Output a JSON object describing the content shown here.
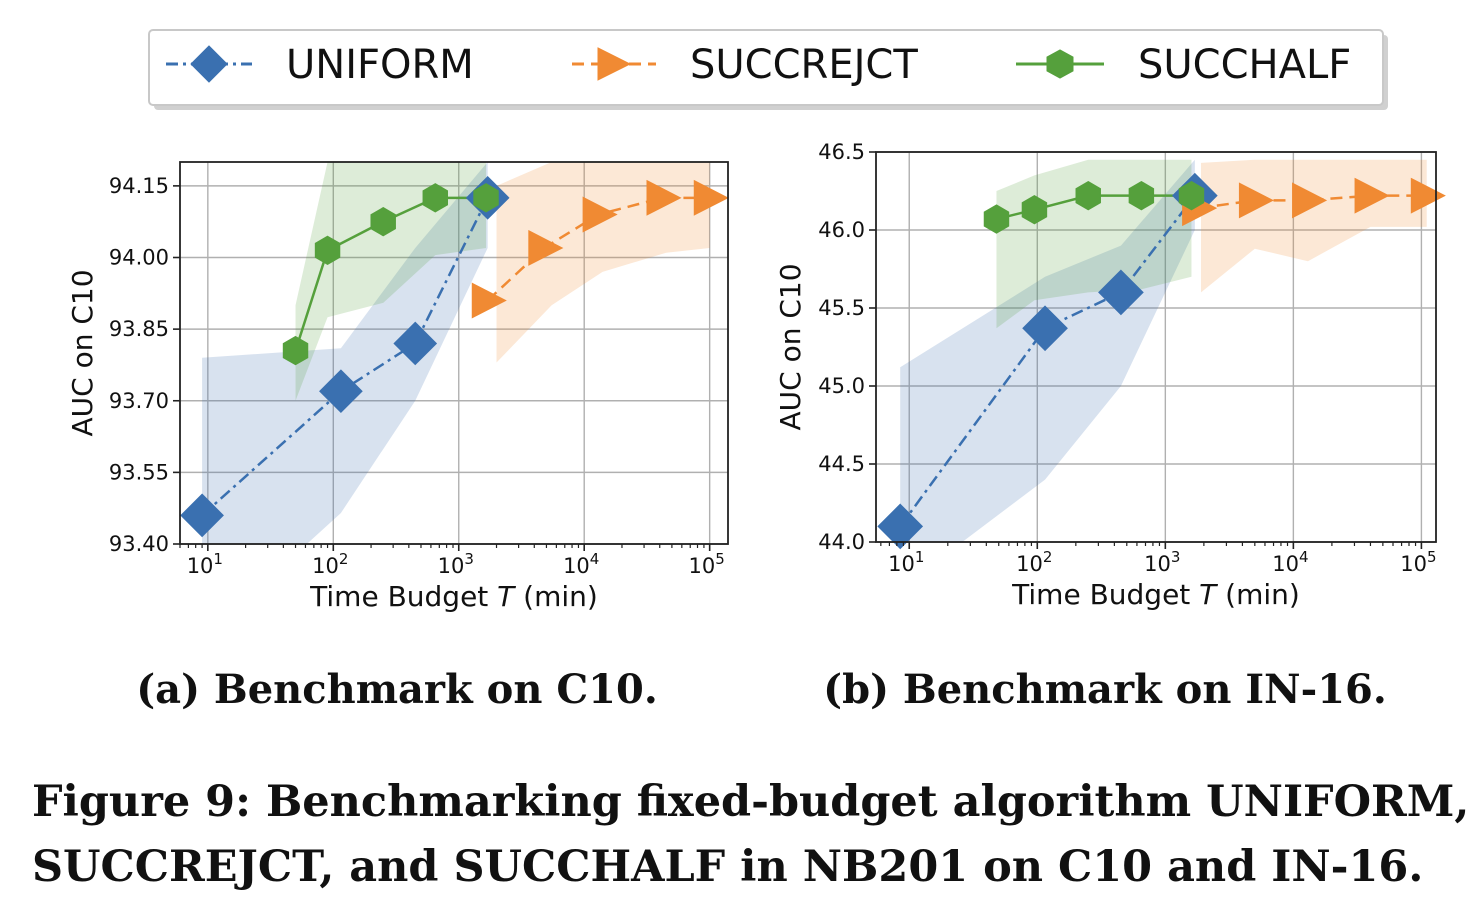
{
  "legend": {
    "entries": [
      {
        "label": "UNIFORM",
        "color": "#3a70b0",
        "marker": "diamond",
        "linestyle": "dashdot"
      },
      {
        "label": "SUCCREJCT",
        "color": "#f08a33",
        "marker": "triangle-right",
        "linestyle": "dashed"
      },
      {
        "label": "SUCCHALF",
        "color": "#55a03c",
        "marker": "hexagon",
        "linestyle": "solid"
      }
    ],
    "placement": "top-center"
  },
  "chart_data": [
    {
      "type": "line",
      "caption": "(a) Benchmark on C10.",
      "xlabel_pre": "Time Budget ",
      "xlabel_var": "T",
      "xlabel_post": " (min)",
      "ylabel": "AUC on C10",
      "xscale": "log",
      "xlim": [
        6,
        140000
      ],
      "ylim": [
        93.4,
        94.2
      ],
      "grid": true,
      "xticks": [
        {
          "value": 10,
          "base": "10",
          "exp": "1"
        },
        {
          "value": 100,
          "base": "10",
          "exp": "2"
        },
        {
          "value": 1000,
          "base": "10",
          "exp": "3"
        },
        {
          "value": 10000,
          "base": "10",
          "exp": "4"
        },
        {
          "value": 100000,
          "base": "10",
          "exp": "5"
        }
      ],
      "yticks": [
        "93.40",
        "93.55",
        "93.70",
        "93.85",
        "94.00",
        "94.15"
      ],
      "series": [
        {
          "name": "UNIFORM",
          "x": [
            9,
            115,
            450,
            1700
          ],
          "y": [
            93.46,
            93.72,
            93.82,
            94.125
          ],
          "band_x": [
            9,
            115,
            450,
            1700
          ],
          "band_low": [
            93.2,
            93.465,
            93.7,
            94.02
          ],
          "band_high": [
            93.79,
            93.81,
            94.02,
            94.2
          ]
        },
        {
          "name": "SUCCREJCT",
          "x": [
            1700,
            4800,
            13000,
            42000,
            100000
          ],
          "y": [
            93.91,
            94.02,
            94.09,
            94.125,
            94.125
          ],
          "band_x": [
            2000,
            5500,
            14000,
            45000,
            100000
          ],
          "band_low": [
            93.78,
            93.9,
            93.97,
            94.01,
            94.02
          ],
          "band_high": [
            94.15,
            94.2,
            94.2,
            94.2,
            94.2
          ]
        },
        {
          "name": "SUCCHALF",
          "x": [
            50,
            90,
            250,
            650,
            1650
          ],
          "y": [
            93.805,
            94.015,
            94.075,
            94.125,
            94.125
          ],
          "band_x": [
            50,
            90,
            250,
            650,
            1650
          ],
          "band_low": [
            93.7,
            93.875,
            93.905,
            94.005,
            94.02
          ],
          "band_high": [
            93.9,
            94.2,
            94.2,
            94.2,
            94.2
          ]
        }
      ]
    },
    {
      "type": "line",
      "caption": "(b) Benchmark on IN-16.",
      "xlabel_pre": "Time Budget ",
      "xlabel_var": "T",
      "xlabel_post": " (min)",
      "ylabel": "AUC on C10",
      "xscale": "log",
      "xlim": [
        5.5,
        130000
      ],
      "ylim": [
        44.0,
        46.5
      ],
      "grid": true,
      "xticks": [
        {
          "value": 10,
          "base": "10",
          "exp": "1"
        },
        {
          "value": 100,
          "base": "10",
          "exp": "2"
        },
        {
          "value": 1000,
          "base": "10",
          "exp": "3"
        },
        {
          "value": 10000,
          "base": "10",
          "exp": "4"
        },
        {
          "value": 100000,
          "base": "10",
          "exp": "5"
        }
      ],
      "yticks": [
        "44.0",
        "44.5",
        "45.0",
        "45.5",
        "46.0",
        "46.5"
      ],
      "series": [
        {
          "name": "UNIFORM",
          "x": [
            8.5,
            115,
            450,
            1700
          ],
          "y": [
            44.1,
            45.37,
            45.6,
            46.22
          ],
          "band_x": [
            8.5,
            115,
            450,
            1700
          ],
          "band_low": [
            43.7,
            44.4,
            45.0,
            46.0
          ],
          "band_high": [
            45.12,
            45.7,
            45.9,
            46.45
          ]
        },
        {
          "name": "SUCCREJCT",
          "x": [
            1800,
            5000,
            13000,
            40000,
            110000
          ],
          "y": [
            46.14,
            46.19,
            46.19,
            46.22,
            46.22
          ],
          "band_x": [
            1900,
            5000,
            13000,
            40000,
            110000
          ],
          "band_low": [
            45.6,
            45.88,
            45.8,
            46.02,
            46.02
          ],
          "band_high": [
            46.43,
            46.45,
            46.45,
            46.45,
            46.45
          ]
        },
        {
          "name": "SUCCHALF",
          "x": [
            48,
            95,
            250,
            650,
            1600
          ],
          "y": [
            46.07,
            46.13,
            46.22,
            46.22,
            46.22
          ],
          "band_x": [
            48,
            95,
            250,
            650,
            1600
          ],
          "band_low": [
            45.37,
            45.55,
            45.6,
            45.62,
            45.7
          ],
          "band_high": [
            46.25,
            46.35,
            46.45,
            46.45,
            46.45
          ]
        }
      ]
    }
  ],
  "figure_caption": {
    "line1": "Figure 9: Benchmarking fixed-budget algorithm UNIFORM,",
    "line2": "SUCCREJCT, and SUCCHALF in NB201 on C10 and IN-16."
  }
}
